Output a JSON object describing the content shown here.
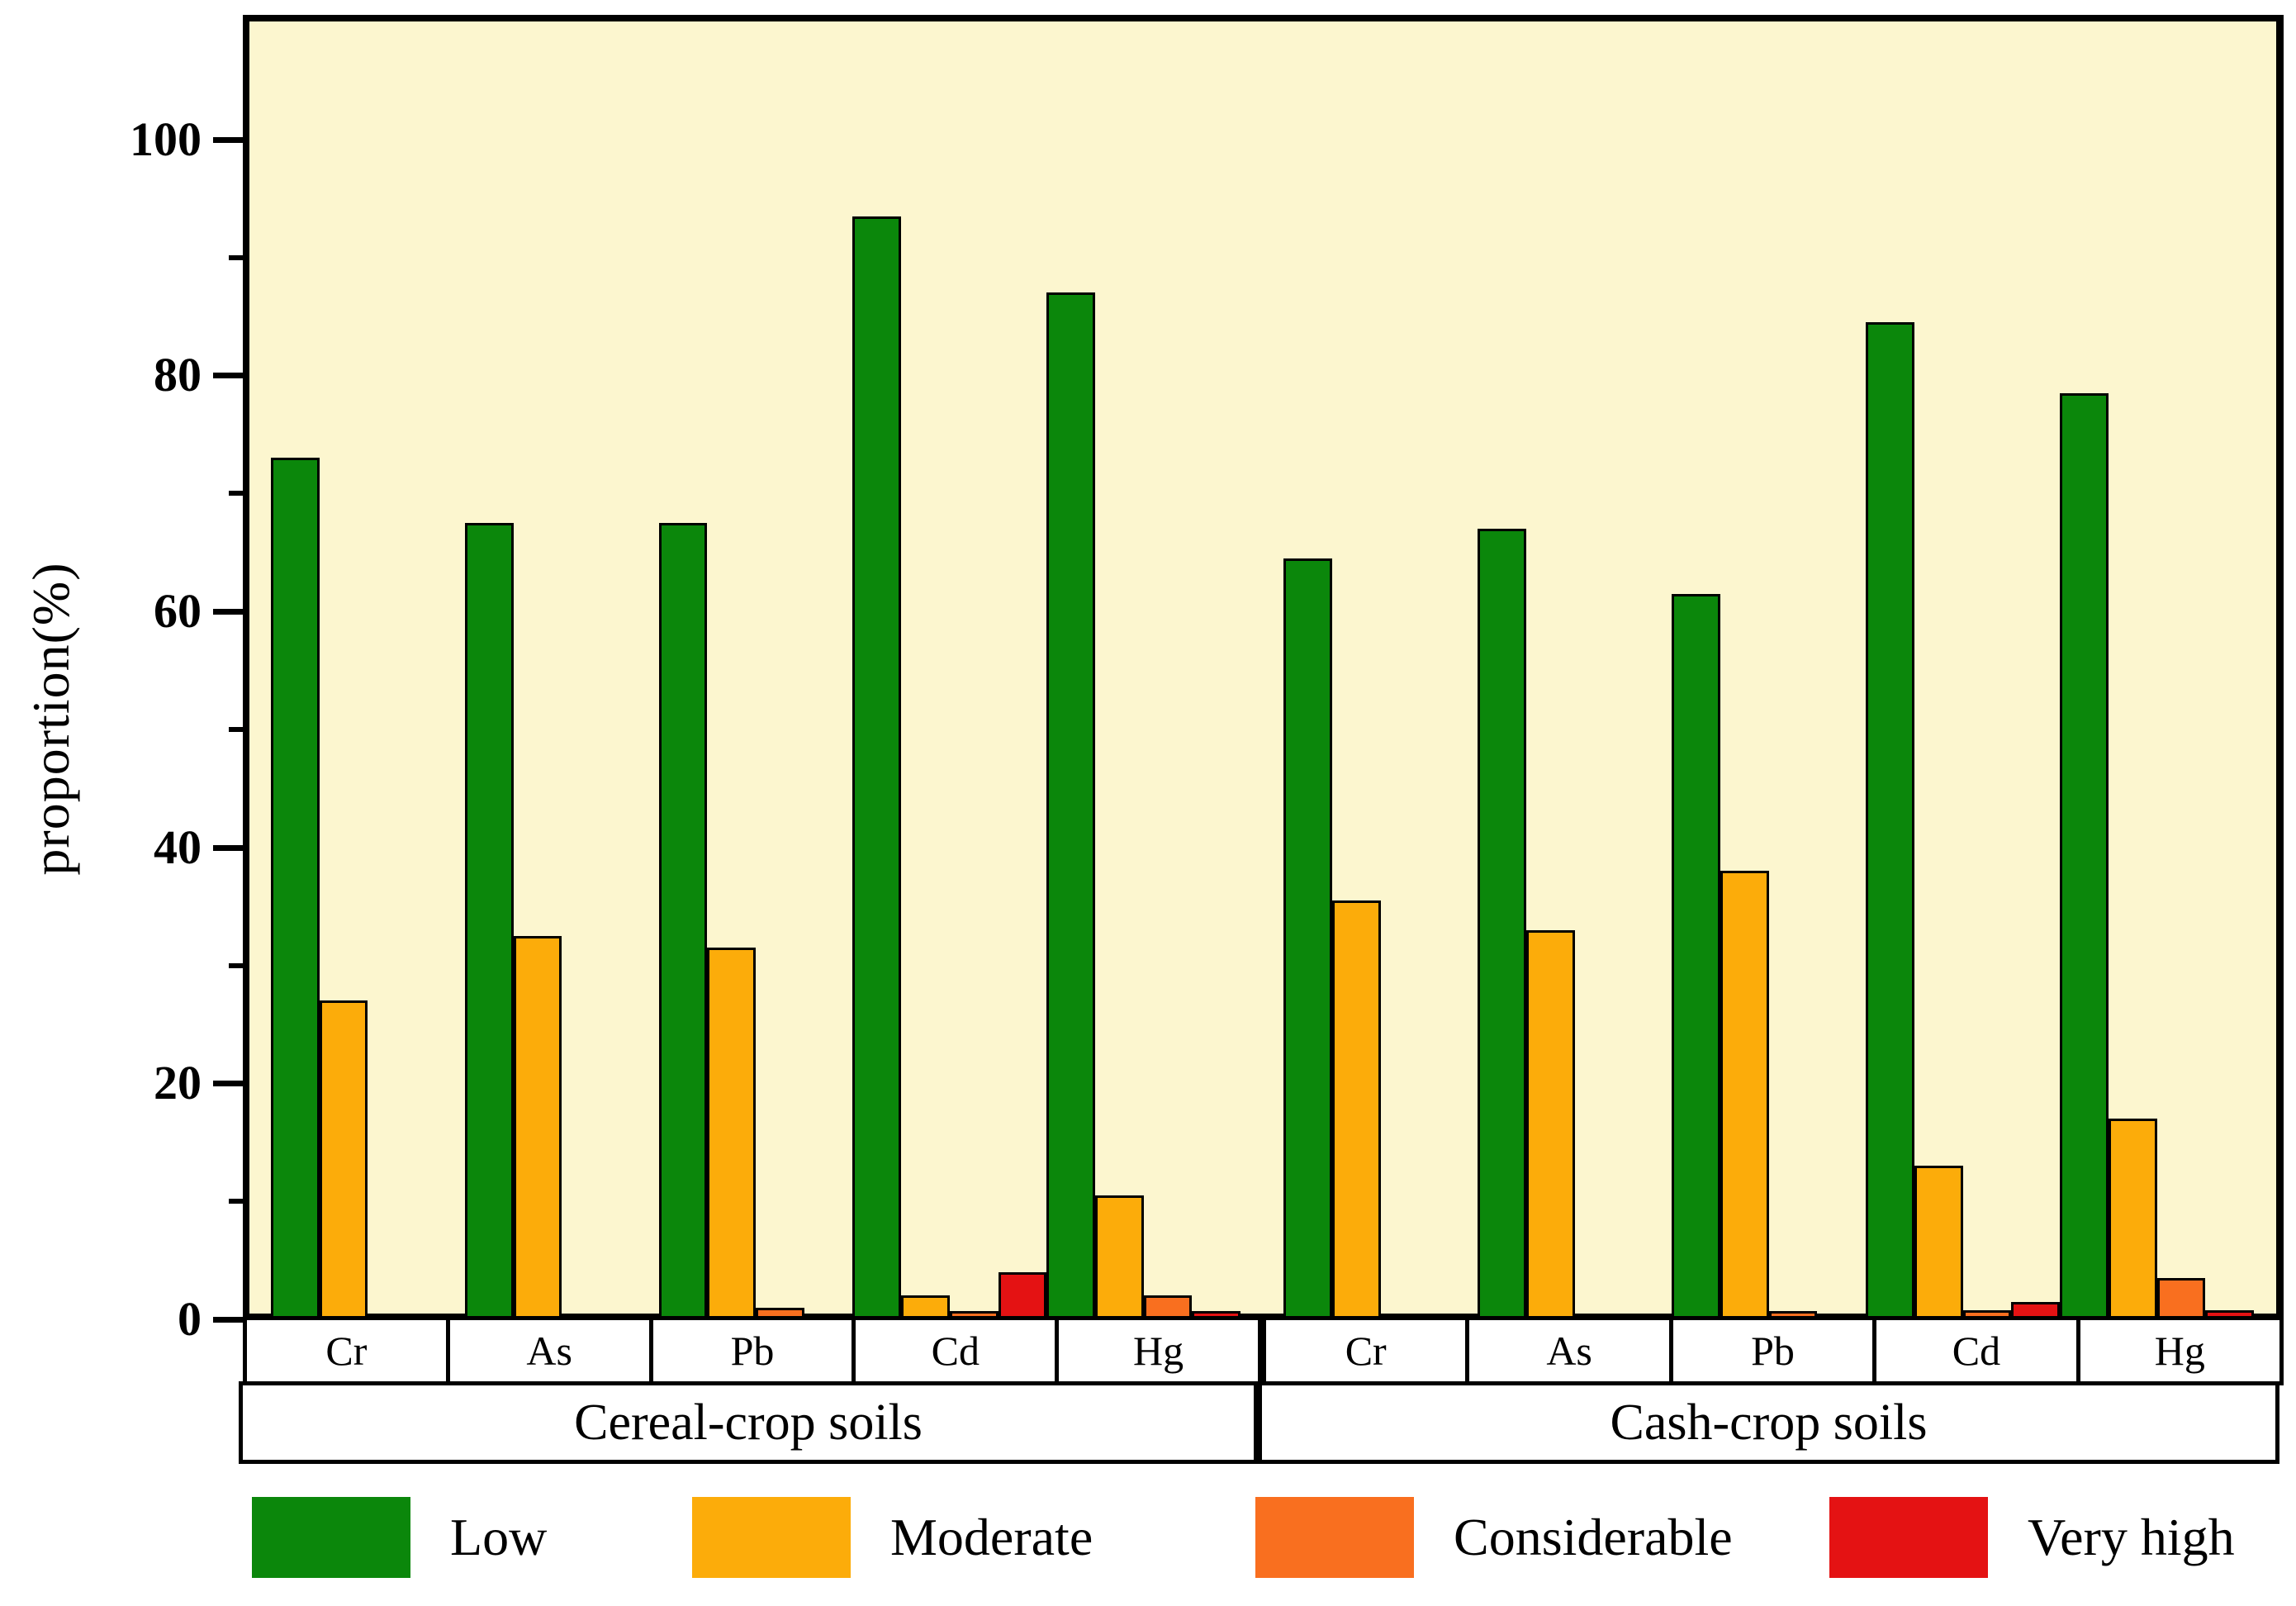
{
  "figure": {
    "y_axis": {
      "title": "proportion(%)",
      "major_ticks": [
        0,
        20,
        40,
        60,
        80,
        100
      ],
      "minor_ticks": [
        10,
        30,
        50,
        70,
        90
      ]
    }
  },
  "chart_data": {
    "type": "bar",
    "title": "",
    "xlabel": "",
    "ylabel": "proportion(%)",
    "ylim": [
      0,
      110
    ],
    "yticks": [
      0,
      20,
      40,
      60,
      80,
      100
    ],
    "minor_yticks": [
      10,
      30,
      50,
      70,
      90
    ],
    "grid": false,
    "plot_background": "#fcf6cf",
    "legend_position": "bottom",
    "groups": [
      "Cereal-crop soils",
      "Cash-crop soils"
    ],
    "categories": [
      "Cr",
      "As",
      "Pb",
      "Cd",
      "Hg"
    ],
    "series": [
      {
        "name": "Low",
        "color": "#0b870b",
        "values": {
          "Cereal-crop soils": [
            73,
            67.5,
            67.5,
            93.5,
            87
          ],
          "Cash-crop soils": [
            64.5,
            67,
            61.5,
            84.5,
            78.5
          ]
        }
      },
      {
        "name": "Moderate",
        "color": "#fcac0a",
        "values": {
          "Cereal-crop soils": [
            27,
            32.5,
            31.5,
            2,
            10.5
          ],
          "Cash-crop soils": [
            35.5,
            33,
            38,
            13,
            17
          ]
        }
      },
      {
        "name": "Considerable",
        "color": "#f96f1f",
        "values": {
          "Cereal-crop soils": [
            0,
            0,
            1,
            0.5,
            2
          ],
          "Cash-crop soils": [
            0,
            0,
            0.3,
            0.8,
            3.5
          ]
        }
      },
      {
        "name": "Very high",
        "color": "#e41213",
        "values": {
          "Cereal-crop soils": [
            0,
            0,
            0,
            4,
            0.3
          ],
          "Cash-crop soils": [
            0,
            0,
            0,
            1.5,
            0.8
          ]
        }
      }
    ]
  }
}
